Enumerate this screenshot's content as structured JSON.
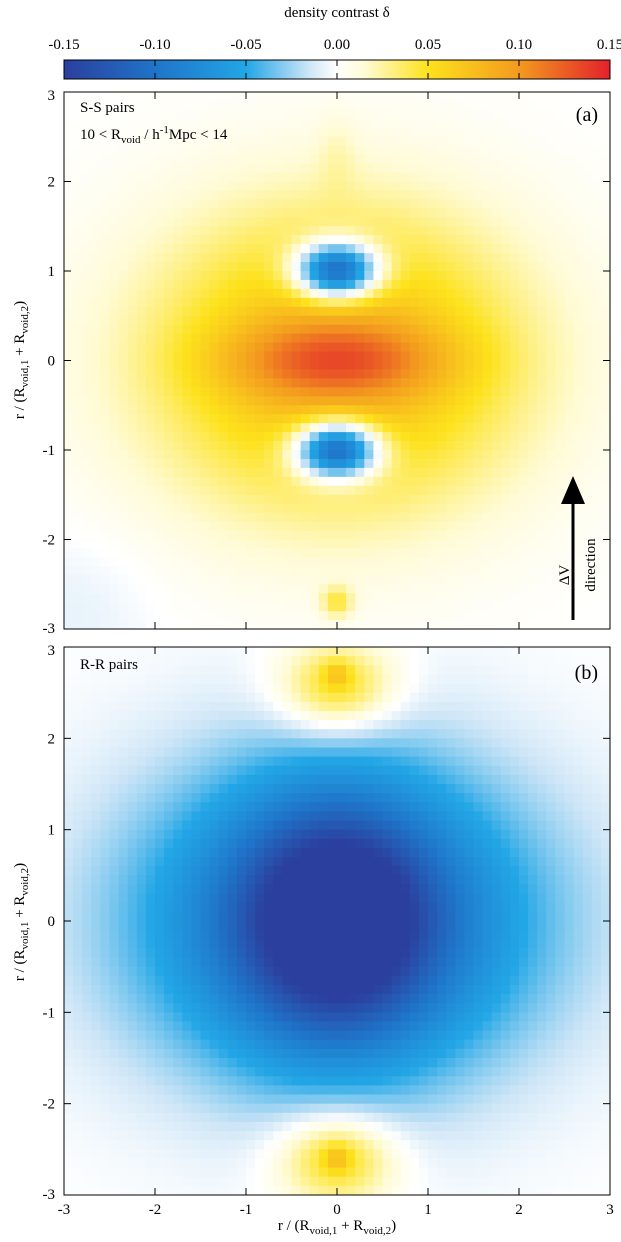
{
  "colorbar": {
    "label": "density contrast δ",
    "min": -0.15,
    "max": 0.15,
    "ticks": [
      "-0.15",
      "-0.10",
      "-0.05",
      "0.00",
      "0.05",
      "0.10",
      "0.15"
    ],
    "tick_values": [
      -0.15,
      -0.1,
      -0.05,
      0.0,
      0.05,
      0.1,
      0.15
    ],
    "colors": {
      "deep_blue": "#2b3f9e",
      "blue": "#1f74c9",
      "light_blue": "#22a6e6",
      "pale_blue": "#cfe6f7",
      "white": "#ffffff",
      "pale_yellow": "#fffbd6",
      "yellow": "#fde21c",
      "orange": "#f39a1f",
      "red": "#e3212b"
    }
  },
  "chart_data": [
    {
      "type": "heatmap",
      "panel_label": "(a)",
      "annotation_line1": "S-S pairs",
      "annotation_line2_prefix": "10 < R",
      "annotation_line2_sub": "void",
      "annotation_line2_mid": " / h",
      "annotation_line2_sup": "-1",
      "annotation_line2_suffix": "Mpc < 14",
      "xlim": [
        -3,
        3
      ],
      "ylim": [
        -3,
        3
      ],
      "ylabel_prefix": "r / (R",
      "ylabel_sub1": "void,1",
      "ylabel_mid": " + R",
      "ylabel_sub2": "void,2",
      "ylabel_suffix": ")",
      "yticks": [
        "3",
        "2",
        "1",
        "0",
        "-1",
        "-2",
        "-3"
      ],
      "ytick_values": [
        3,
        2,
        1,
        0,
        -1,
        -2,
        -3
      ],
      "arrow_label_1": "ΔV",
      "arrow_label_2": "direction",
      "field": {
        "components": [
          {
            "kind": "ellipse_gauss",
            "x": 0,
            "y": 0,
            "sx": 1.45,
            "sy": 1.2,
            "amp": 0.085
          },
          {
            "kind": "ellipse_gauss",
            "x": 0,
            "y": 0,
            "sx": 0.85,
            "sy": 0.3,
            "amp": 0.05
          },
          {
            "kind": "ellipse_gauss",
            "x": 0,
            "y": 1.0,
            "sx": 0.32,
            "sy": 0.22,
            "amp": -0.16
          },
          {
            "kind": "ellipse_gauss",
            "x": 0,
            "y": -1.0,
            "sx": 0.32,
            "sy": 0.22,
            "amp": -0.16
          },
          {
            "kind": "ellipse_gauss",
            "x": 0,
            "y": -2.7,
            "sx": 0.12,
            "sy": 0.12,
            "amp": 0.04
          },
          {
            "kind": "ellipse_gauss",
            "x": 0,
            "y": 2.3,
            "sx": 0.15,
            "sy": 0.3,
            "amp": 0.01
          },
          {
            "kind": "ellipse_gauss",
            "x": -2.9,
            "y": -2.8,
            "sx": 0.6,
            "sy": 0.6,
            "amp": -0.008
          }
        ]
      }
    },
    {
      "type": "heatmap",
      "panel_label": "(b)",
      "annotation_line1": "R-R pairs",
      "xlim": [
        -3,
        3
      ],
      "ylim": [
        -3,
        3
      ],
      "xlabel_prefix": "r / (R",
      "xlabel_sub1": "void,1",
      "xlabel_mid": " + R",
      "xlabel_sub2": "void,2",
      "xlabel_suffix": ")",
      "ylabel_prefix": "r / (R",
      "ylabel_sub1": "void,1",
      "ylabel_mid": " + R",
      "ylabel_sub2": "void,2",
      "ylabel_suffix": ")",
      "xticks": [
        "-3",
        "-2",
        "-1",
        "0",
        "1",
        "2",
        "3"
      ],
      "xtick_values": [
        -3,
        -2,
        -1,
        0,
        1,
        2,
        3
      ],
      "yticks": [
        "3",
        "2",
        "1",
        "0",
        "-1",
        "-2",
        "-3"
      ],
      "ytick_values": [
        3,
        2,
        1,
        0,
        -1,
        -2,
        -3
      ],
      "field": {
        "components": [
          {
            "kind": "ellipse_gauss",
            "x": 0,
            "y": 0,
            "sx": 1.55,
            "sy": 1.2,
            "amp": -0.115
          },
          {
            "kind": "ellipse_gauss",
            "x": 0,
            "y": 0,
            "sx": 0.75,
            "sy": 0.95,
            "amp": -0.09
          },
          {
            "kind": "ellipse_gauss",
            "x": 0,
            "y": 2.55,
            "sx": 0.45,
            "sy": 0.35,
            "amp": 0.06
          },
          {
            "kind": "ellipse_gauss",
            "x": 0,
            "y": -2.6,
            "sx": 0.45,
            "sy": 0.35,
            "amp": 0.06
          },
          {
            "kind": "ellipse_gauss",
            "x": 0,
            "y": 2.7,
            "sx": 0.1,
            "sy": 0.1,
            "amp": 0.03
          },
          {
            "kind": "ellipse_gauss",
            "x": 0,
            "y": -2.6,
            "sx": 0.1,
            "sy": 0.1,
            "amp": 0.03
          }
        ]
      }
    }
  ]
}
